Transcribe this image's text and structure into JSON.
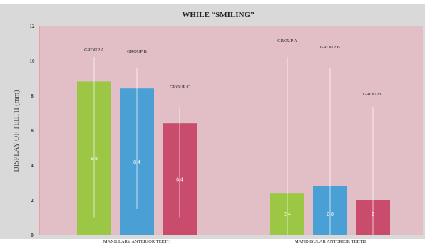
{
  "chart_data": {
    "type": "bar",
    "title": "WHILE “SMILING”",
    "xlabel": "",
    "ylabel": "DISPLAY OF TEETH (mm)",
    "ylim": [
      0,
      12
    ],
    "yticks": [
      "0",
      "2",
      "4",
      "6",
      "8",
      "10",
      "12"
    ],
    "grid": false,
    "legend": "none",
    "categories": [
      "MAXILLARY ANTERIOR TEETH",
      "MANDIBULAR ANTERIOR TEETH"
    ],
    "series": [
      {
        "name": "GROUP A",
        "color": "#9bc744",
        "values": [
          8.8,
          2.4
        ],
        "value_labels": [
          "8.8",
          "2.4"
        ],
        "error_low": [
          1.0,
          0.0
        ],
        "error_high": [
          10.2,
          10.2
        ]
      },
      {
        "name": "GROUP B",
        "color": "#4a9fd4",
        "values": [
          8.4,
          2.8
        ],
        "value_labels": [
          "8.4",
          "2.8"
        ],
        "error_low": [
          1.5,
          0.0
        ],
        "error_high": [
          9.6,
          9.6
        ]
      },
      {
        "name": "GROUP C",
        "color": "#c94c6c",
        "values": [
          6.4,
          2.0
        ],
        "value_labels": [
          "6.4",
          "2"
        ],
        "error_low": [
          1.0,
          0.0
        ],
        "error_high": [
          7.3,
          7.3
        ]
      }
    ],
    "colors": {
      "plot_background": "#e2bfc7",
      "outer_background": "#d9d9d9",
      "error_bar": "#ffffff"
    }
  }
}
